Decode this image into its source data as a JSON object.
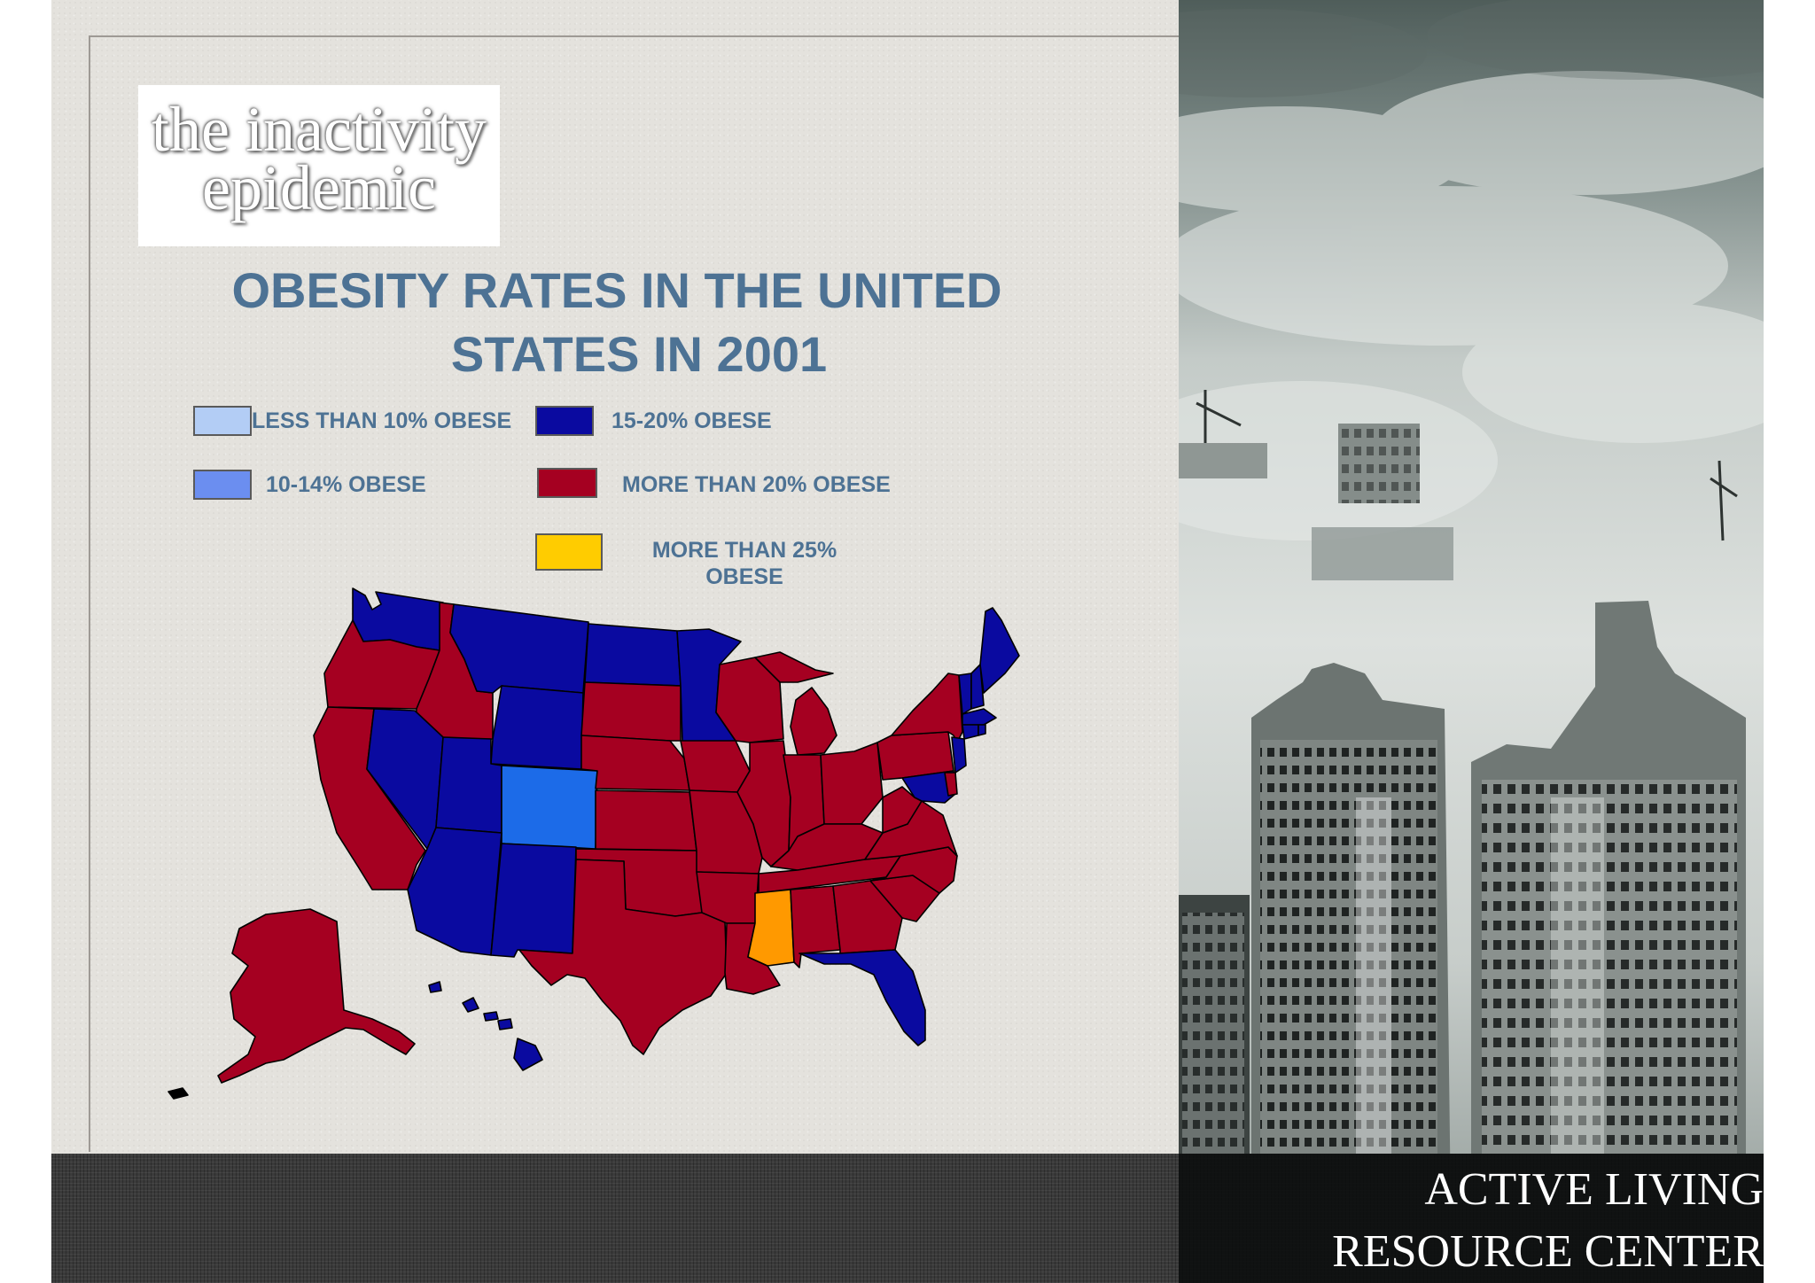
{
  "slide": {
    "heading_line1": "the inactivity",
    "heading_line2": "epidemic",
    "center_line1": "ACTIVE LIVING",
    "center_line2": "RESOURCE CENTER"
  },
  "map": {
    "title_line1": "OBESITY RATES IN THE UNITED",
    "title_line2": "STATES IN 2001",
    "legend": [
      {
        "label": "LESS THAN 10% OBESE",
        "color": "#b3cdf5"
      },
      {
        "label": "15-20% OBESE",
        "color": "#0a0aa0"
      },
      {
        "label": "10-14% OBESE",
        "color": "#6b8ef0"
      },
      {
        "label": "MORE THAN 20% OBESE",
        "color": "#a50021"
      },
      {
        "label_line1": "MORE THAN 25%",
        "label_line2": "OBESE",
        "color": "#ffcc00"
      }
    ],
    "state_colors": {
      "red": "#a50021",
      "blue": "#0a0aa0",
      "colorado": "#1c6be8",
      "mississippi": "#ff9900"
    }
  }
}
